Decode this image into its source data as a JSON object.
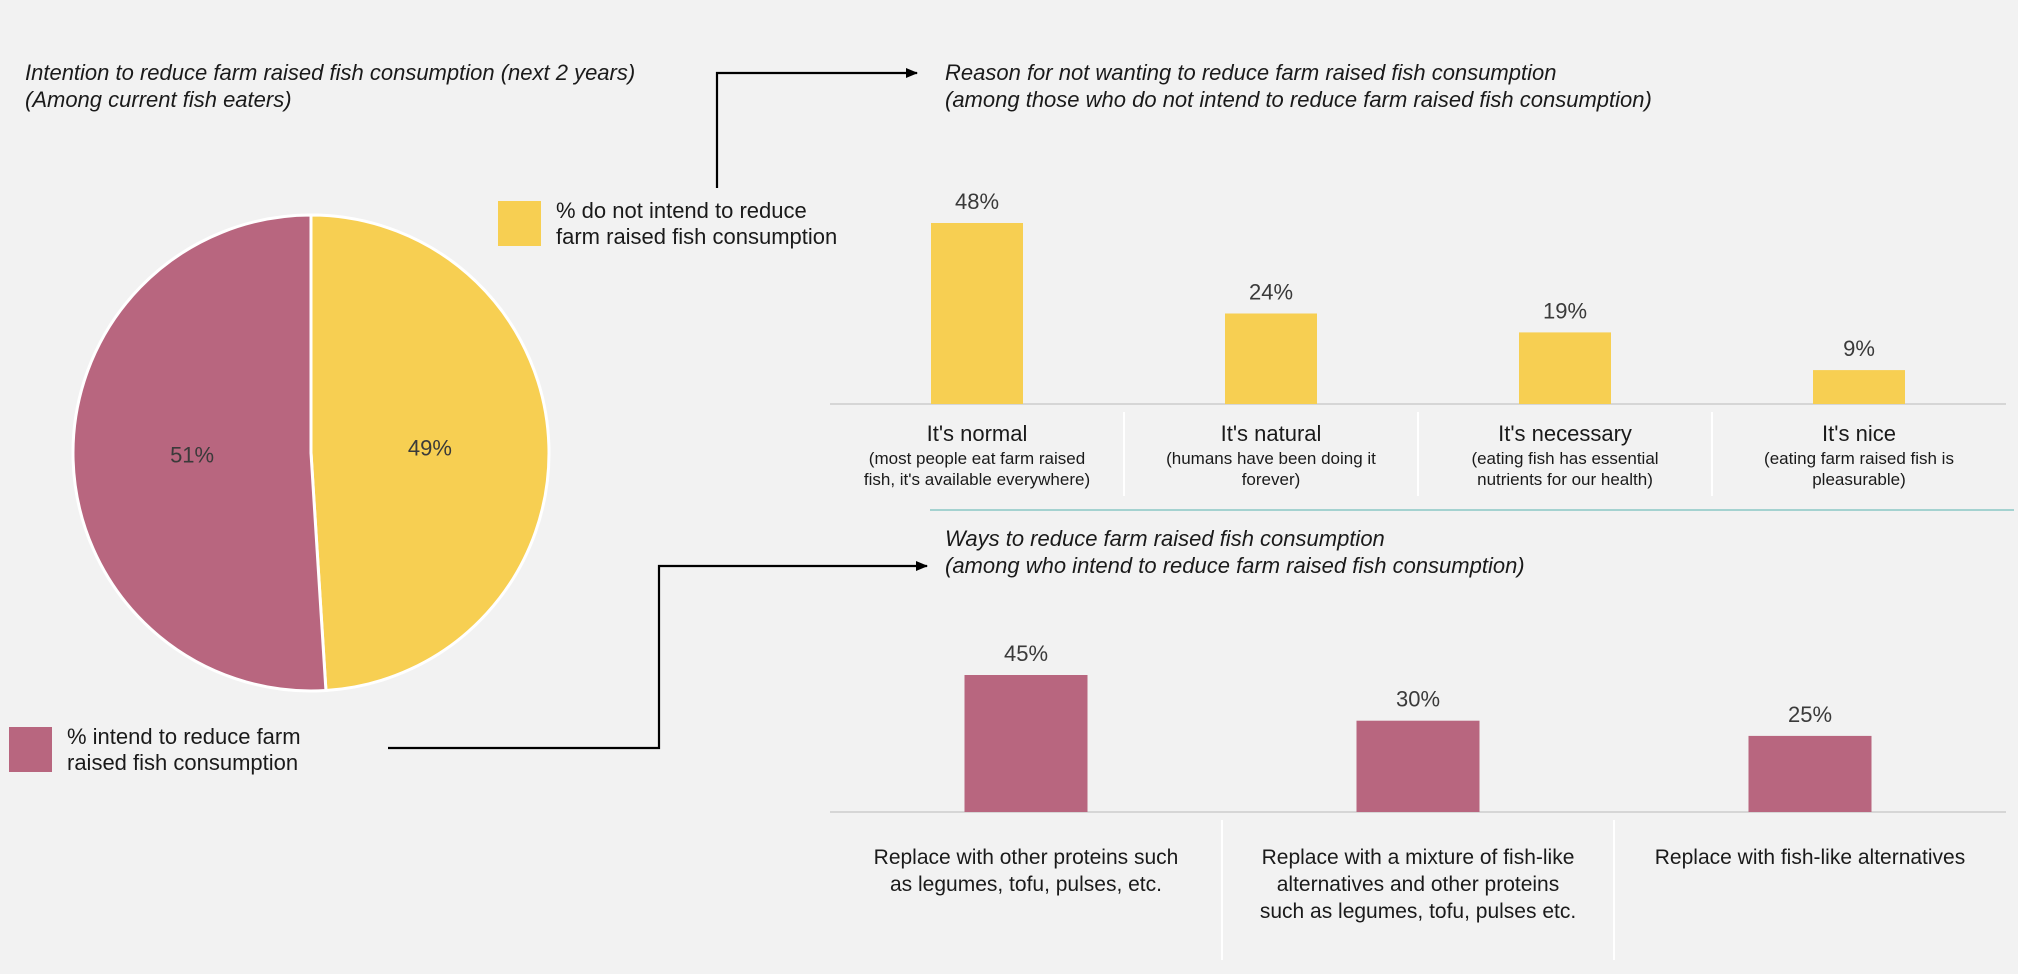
{
  "colors": {
    "yellow": "#f7cf52",
    "pink": "#b8667f",
    "background": "#f2f2f2",
    "divider": "#8ac8c4"
  },
  "pie": {
    "title_line1": "Intention to reduce farm raised fish consumption (next 2 years)",
    "title_line2": "(Among current fish eaters)",
    "legend_no_line1": "% do not intend to reduce",
    "legend_no_line2": "farm raised  fish consumption",
    "legend_yes_line1": "% intend to reduce farm",
    "legend_yes_line2": "raised fish consumption"
  },
  "top_chart": {
    "title_line1": "Reason for not wanting to reduce farm raised fish consumption",
    "title_line2": "(among those who do not intend to reduce farm raised fish consumption)"
  },
  "bottom_chart": {
    "title_line1": "Ways to reduce farm raised fish consumption",
    "title_line2": "(among who intend to reduce farm raised fish consumption)"
  },
  "chart_data": [
    {
      "type": "pie",
      "title": "Intention to reduce farm raised fish consumption (next 2 years) (Among current fish eaters)",
      "slices": [
        {
          "label": "% do not intend to reduce farm raised fish consumption",
          "value": 49,
          "value_label": "49%",
          "color": "#f7cf52"
        },
        {
          "label": "% intend to reduce farm raised fish consumption",
          "value": 51,
          "value_label": "51%",
          "color": "#b8667f"
        }
      ]
    },
    {
      "type": "bar",
      "title": "Reason for not wanting to reduce farm raised fish consumption (among those who do not intend to reduce farm raised fish consumption)",
      "categories": [
        {
          "main": "It's normal",
          "sub": [
            "(most people eat farm raised",
            "fish, it's available everywhere)"
          ]
        },
        {
          "main": "It's natural",
          "sub": [
            "(humans have been doing it",
            "forever)"
          ]
        },
        {
          "main": "It's necessary",
          "sub": [
            "(eating fish has essential",
            "nutrients for our health)"
          ]
        },
        {
          "main": "It's nice",
          "sub": [
            "(eating farm raised fish is",
            "pleasurable)"
          ]
        }
      ],
      "values": [
        48,
        24,
        19,
        9
      ],
      "value_labels": [
        "48%",
        "24%",
        "19%",
        "9%"
      ],
      "color": "#f7cf52",
      "ylim": [
        0,
        48
      ]
    },
    {
      "type": "bar",
      "title": "Ways to reduce farm raised fish consumption (among who intend to reduce farm raised fish consumption)",
      "categories": [
        {
          "lines": [
            "Replace with other proteins such",
            "as legumes, tofu, pulses, etc."
          ]
        },
        {
          "lines": [
            "Replace with a mixture of fish-like",
            "alternatives and other proteins",
            "such as legumes, tofu, pulses etc."
          ]
        },
        {
          "lines": [
            "Replace with fish-like alternatives"
          ]
        }
      ],
      "values": [
        45,
        30,
        25
      ],
      "value_labels": [
        "45%",
        "30%",
        "25%"
      ],
      "color": "#b8667f",
      "ylim": [
        0,
        45
      ]
    }
  ]
}
